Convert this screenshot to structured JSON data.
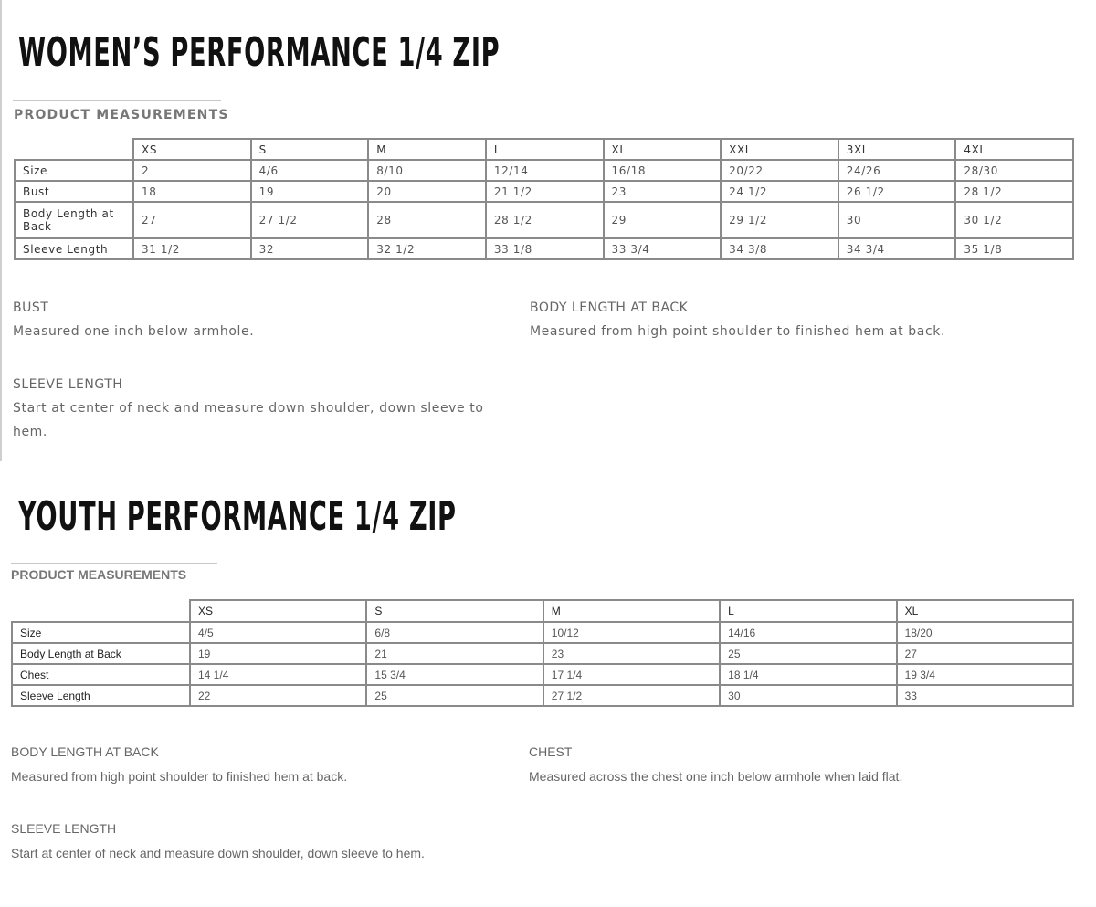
{
  "womens": {
    "title": "WOMEN’S PERFORMANCE 1/4 ZIP",
    "section_label": "PRODUCT MEASUREMENTS",
    "columns": [
      "XS",
      "S",
      "M",
      "L",
      "XL",
      "XXL",
      "3XL",
      "4XL"
    ],
    "rows": [
      {
        "label": "Size",
        "values": [
          "2",
          "4/6",
          "8/10",
          "12/14",
          "16/18",
          "20/22",
          "24/26",
          "28/30"
        ]
      },
      {
        "label": "Bust",
        "values": [
          "18",
          "19",
          "20",
          "21 1/2",
          "23",
          "24 1/2",
          "26 1/2",
          "28 1/2"
        ]
      },
      {
        "label": "Body Length at Back",
        "values": [
          "27",
          "27 1/2",
          "28",
          "28 1/2",
          "29",
          "29 1/2",
          "30",
          "30 1/2"
        ]
      },
      {
        "label": "Sleeve Length",
        "values": [
          "31 1/2",
          "32",
          "32 1/2",
          "33 1/8",
          "33 3/4",
          "34 3/8",
          "34 3/4",
          "35 1/8"
        ]
      }
    ],
    "descriptions": [
      {
        "heading": "BUST",
        "text": "Measured one inch below armhole."
      },
      {
        "heading": "BODY LENGTH AT BACK",
        "text": "Measured from high point shoulder to finished hem at back."
      },
      {
        "heading": "SLEEVE LENGTH",
        "text": "Start at center of neck and measure down shoulder, down sleeve to hem."
      }
    ]
  },
  "youth": {
    "title": "YOUTH PERFORMANCE 1/4 ZIP",
    "section_label": "PRODUCT MEASUREMENTS",
    "columns": [
      "XS",
      "S",
      "M",
      "L",
      "XL"
    ],
    "rows": [
      {
        "label": "Size",
        "values": [
          "4/5",
          "6/8",
          "10/12",
          "14/16",
          "18/20"
        ]
      },
      {
        "label": "Body Length at Back",
        "values": [
          "19",
          "21",
          "23",
          "25",
          "27"
        ]
      },
      {
        "label": "Chest",
        "values": [
          "14 1/4",
          "15 3/4",
          "17 1/4",
          "18 1/4",
          "19 3/4"
        ]
      },
      {
        "label": "Sleeve Length",
        "values": [
          "22",
          "25",
          "27 1/2",
          "30",
          "33"
        ]
      }
    ],
    "descriptions": [
      {
        "heading": "BODY LENGTH AT BACK",
        "text": "Measured from high point shoulder to finished hem at back."
      },
      {
        "heading": "CHEST",
        "text": "Measured across the chest one inch below armhole when laid flat."
      },
      {
        "heading": "SLEEVE LENGTH",
        "text": "Start at center of neck and measure down shoulder, down sleeve to hem."
      }
    ]
  }
}
